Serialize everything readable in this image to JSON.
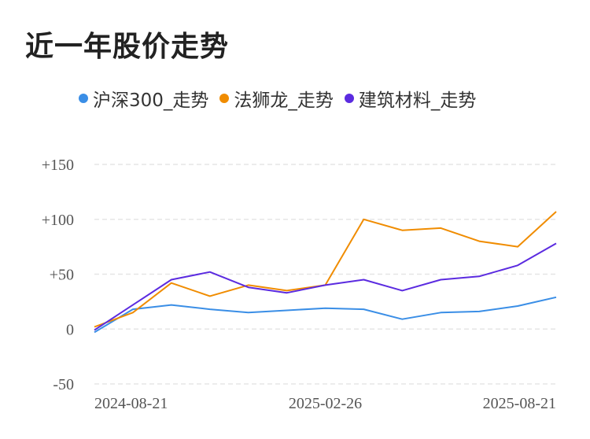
{
  "title": "近一年股价走势",
  "chart_data": {
    "type": "line",
    "title": "近一年股价走势",
    "xlabel": "",
    "ylabel": "",
    "ylim": [
      -50,
      150
    ],
    "yticks": [
      "+150",
      "+100",
      "+50",
      "0",
      "-50"
    ],
    "ytick_values": [
      150,
      100,
      50,
      0,
      -50
    ],
    "x_tick_labels": [
      "2024-08-21",
      "2025-02-26",
      "2025-08-21"
    ],
    "x_tick_index": [
      0,
      6,
      12
    ],
    "grid": "horizontal dashed",
    "legend_position": "top",
    "x": [
      "2024-08-21",
      "2024-09-21",
      "2024-10-21",
      "2024-11-21",
      "2024-12-21",
      "2025-01-21",
      "2025-02-26",
      "2025-03-21",
      "2025-04-21",
      "2025-05-21",
      "2025-06-21",
      "2025-07-21",
      "2025-08-21"
    ],
    "series": [
      {
        "name": "沪深300_走势",
        "color": "#3a8ee6",
        "values": [
          -3,
          18,
          22,
          18,
          15,
          17,
          19,
          18,
          9,
          15,
          16,
          21,
          29
        ]
      },
      {
        "name": "法狮龙_走势",
        "color": "#f08c00",
        "values": [
          2,
          15,
          42,
          30,
          40,
          35,
          40,
          100,
          90,
          92,
          80,
          75,
          107
        ]
      },
      {
        "name": "建筑材料_走势",
        "color": "#5b2be0",
        "values": [
          -1,
          22,
          45,
          52,
          38,
          33,
          40,
          45,
          35,
          45,
          48,
          58,
          78
        ]
      }
    ]
  }
}
